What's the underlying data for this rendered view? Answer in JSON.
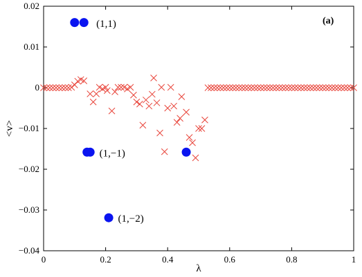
{
  "chart_data": {
    "type": "scatter",
    "panel_label": "(a)",
    "xlabel": "λ",
    "ylabel": "<v>",
    "xlim": [
      0,
      1
    ],
    "ylim": [
      -0.04,
      0.02
    ],
    "grid": false,
    "x_ticks": [
      0,
      0.2,
      0.4,
      0.6,
      0.8,
      1
    ],
    "x_tick_labels": [
      "0",
      "0.2",
      "0.4",
      "0.6",
      "0.8",
      "1"
    ],
    "y_ticks": [
      0.02,
      0.01,
      0,
      -0.01,
      -0.02,
      -0.03,
      -0.04
    ],
    "y_tick_labels": [
      "0.02",
      "0.01",
      "0",
      "−0.01",
      "−0.02",
      "−0.03",
      "−0.04"
    ],
    "series": [
      {
        "marker": "x",
        "color": "#e8443a",
        "points": [
          [
            0.0,
            0
          ],
          [
            0.01,
            0
          ],
          [
            0.02,
            0
          ],
          [
            0.03,
            0
          ],
          [
            0.04,
            0
          ],
          [
            0.05,
            0
          ],
          [
            0.06,
            0
          ],
          [
            0.07,
            0
          ],
          [
            0.08,
            0
          ],
          [
            0.09,
            0.0001
          ],
          [
            0.1,
            0.0007
          ],
          [
            0.11,
            0.0016
          ],
          [
            0.12,
            0.002
          ],
          [
            0.13,
            0.0017
          ],
          [
            0.15,
            -0.0015
          ],
          [
            0.16,
            -0.0035
          ],
          [
            0.17,
            -0.0015
          ],
          [
            0.18,
            0.0001
          ],
          [
            0.19,
            -0.0003
          ],
          [
            0.2,
            0.0001
          ],
          [
            0.205,
            -0.0007
          ],
          [
            0.22,
            -0.0057
          ],
          [
            0.23,
            -0.001
          ],
          [
            0.24,
            0.0001
          ],
          [
            0.25,
            0.0001
          ],
          [
            0.26,
            0.0001
          ],
          [
            0.27,
            -0.0003
          ],
          [
            0.28,
            0.0001
          ],
          [
            0.29,
            -0.0018
          ],
          [
            0.3,
            -0.0035
          ],
          [
            0.31,
            -0.004
          ],
          [
            0.32,
            -0.0092
          ],
          [
            0.33,
            -0.003
          ],
          [
            0.34,
            -0.0045
          ],
          [
            0.35,
            -0.0016
          ],
          [
            0.355,
            0.0024
          ],
          [
            0.365,
            -0.0037
          ],
          [
            0.375,
            -0.0111
          ],
          [
            0.38,
            0.0001
          ],
          [
            0.39,
            -0.0157
          ],
          [
            0.4,
            -0.005
          ],
          [
            0.41,
            0.0001
          ],
          [
            0.42,
            -0.0045
          ],
          [
            0.43,
            -0.0085
          ],
          [
            0.44,
            -0.0075
          ],
          [
            0.445,
            -0.0022
          ],
          [
            0.46,
            -0.006
          ],
          [
            0.47,
            -0.0122
          ],
          [
            0.48,
            -0.0135
          ],
          [
            0.49,
            -0.0172
          ],
          [
            0.5,
            -0.01
          ],
          [
            0.51,
            -0.01
          ],
          [
            0.52,
            -0.0079
          ],
          [
            0.53,
            0
          ],
          [
            0.54,
            0
          ],
          [
            0.55,
            0
          ],
          [
            0.56,
            0
          ],
          [
            0.57,
            0
          ],
          [
            0.58,
            0
          ],
          [
            0.59,
            0
          ],
          [
            0.6,
            0
          ],
          [
            0.61,
            0
          ],
          [
            0.62,
            0
          ],
          [
            0.63,
            0
          ],
          [
            0.64,
            0
          ],
          [
            0.65,
            0
          ],
          [
            0.66,
            0
          ],
          [
            0.67,
            0
          ],
          [
            0.68,
            0
          ],
          [
            0.69,
            0
          ],
          [
            0.7,
            0
          ],
          [
            0.71,
            0
          ],
          [
            0.72,
            0
          ],
          [
            0.73,
            0
          ],
          [
            0.74,
            0
          ],
          [
            0.75,
            0
          ],
          [
            0.76,
            0
          ],
          [
            0.77,
            0
          ],
          [
            0.78,
            0
          ],
          [
            0.79,
            0
          ],
          [
            0.8,
            0
          ],
          [
            0.81,
            0
          ],
          [
            0.82,
            0
          ],
          [
            0.83,
            0
          ],
          [
            0.84,
            0
          ],
          [
            0.85,
            0
          ],
          [
            0.86,
            0
          ],
          [
            0.87,
            0
          ],
          [
            0.88,
            0
          ],
          [
            0.89,
            0
          ],
          [
            0.9,
            0
          ],
          [
            0.91,
            0
          ],
          [
            0.92,
            0
          ],
          [
            0.93,
            0
          ],
          [
            0.94,
            0
          ],
          [
            0.95,
            0
          ],
          [
            0.96,
            0
          ],
          [
            0.97,
            0
          ],
          [
            0.98,
            0
          ],
          [
            0.99,
            0
          ],
          [
            1.0,
            0
          ]
        ]
      },
      {
        "marker": "filled-circle",
        "color": "#0a14f0",
        "points": [
          [
            0.1,
            0.016
          ],
          [
            0.13,
            0.016
          ],
          [
            0.14,
            -0.0158
          ],
          [
            0.15,
            -0.0158
          ],
          [
            0.21,
            -0.0319
          ],
          [
            0.46,
            -0.0158
          ]
        ]
      }
    ],
    "annotations": [
      {
        "text": "(1,1)",
        "x": 0.17,
        "y": 0.0158
      },
      {
        "text": "(1,−1)",
        "x": 0.18,
        "y": -0.016
      },
      {
        "text": "(1,−2)",
        "x": 0.24,
        "y": -0.032
      }
    ]
  }
}
